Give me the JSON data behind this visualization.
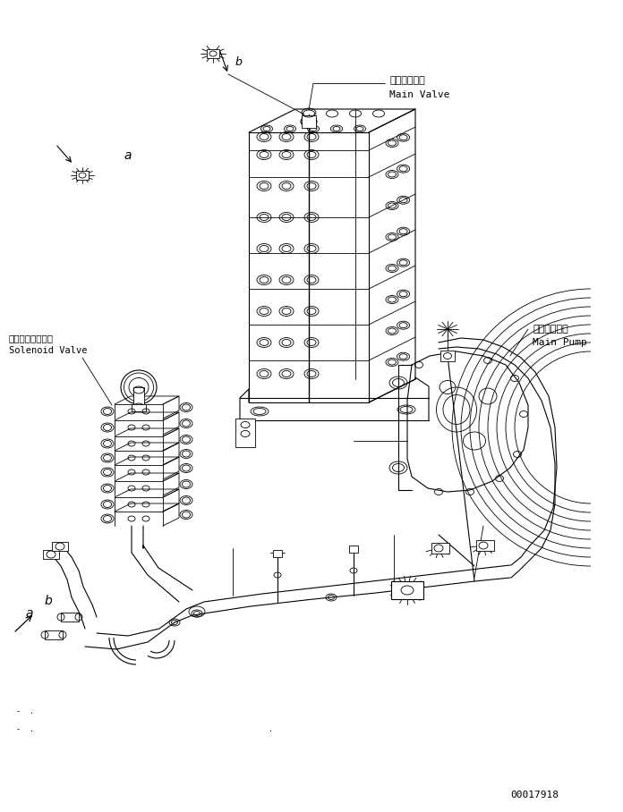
{
  "background_color": "#ffffff",
  "line_color": "#000000",
  "labels": {
    "main_valve_jp": "メインバルブ",
    "main_valve_en": "Main Valve",
    "main_pump_jp": "メインポンプ",
    "main_pump_en": "Main Pump",
    "solenoid_jp": "ソレノイドバルブ",
    "solenoid_en": "Solenoid Valve",
    "part_number": "00017918"
  },
  "figsize": [
    6.96,
    9.08
  ],
  "dpi": 100
}
